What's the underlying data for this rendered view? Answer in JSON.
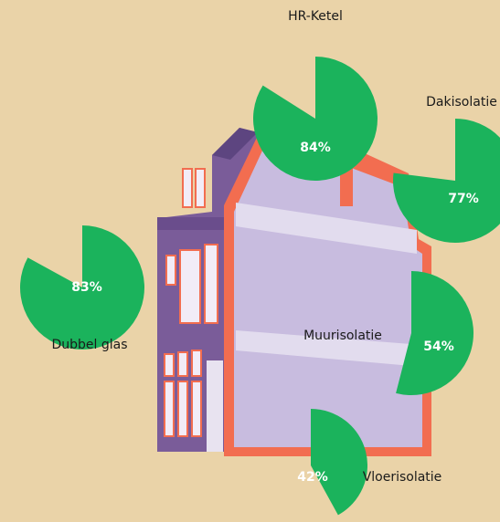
{
  "chart_data": [
    {
      "type": "pie",
      "title": "HR-Ketel",
      "values": [
        84
      ],
      "value_labels": [
        "84%"
      ],
      "color": "#1bb35c"
    },
    {
      "type": "pie",
      "title": "Dakisolatie",
      "values": [
        77
      ],
      "value_labels": [
        "77%"
      ],
      "color": "#1bb35c"
    },
    {
      "type": "pie",
      "title": "Dubbel glas",
      "values": [
        83
      ],
      "value_labels": [
        "83%"
      ],
      "color": "#1bb35c"
    },
    {
      "type": "pie",
      "title": "Muurisolatie",
      "values": [
        54
      ],
      "value_labels": [
        "54%"
      ],
      "color": "#1bb35c"
    },
    {
      "type": "pie",
      "title": "Vloerisolatie",
      "values": [
        42
      ],
      "value_labels": [
        "42%"
      ],
      "color": "#1bb35c"
    }
  ]
}
